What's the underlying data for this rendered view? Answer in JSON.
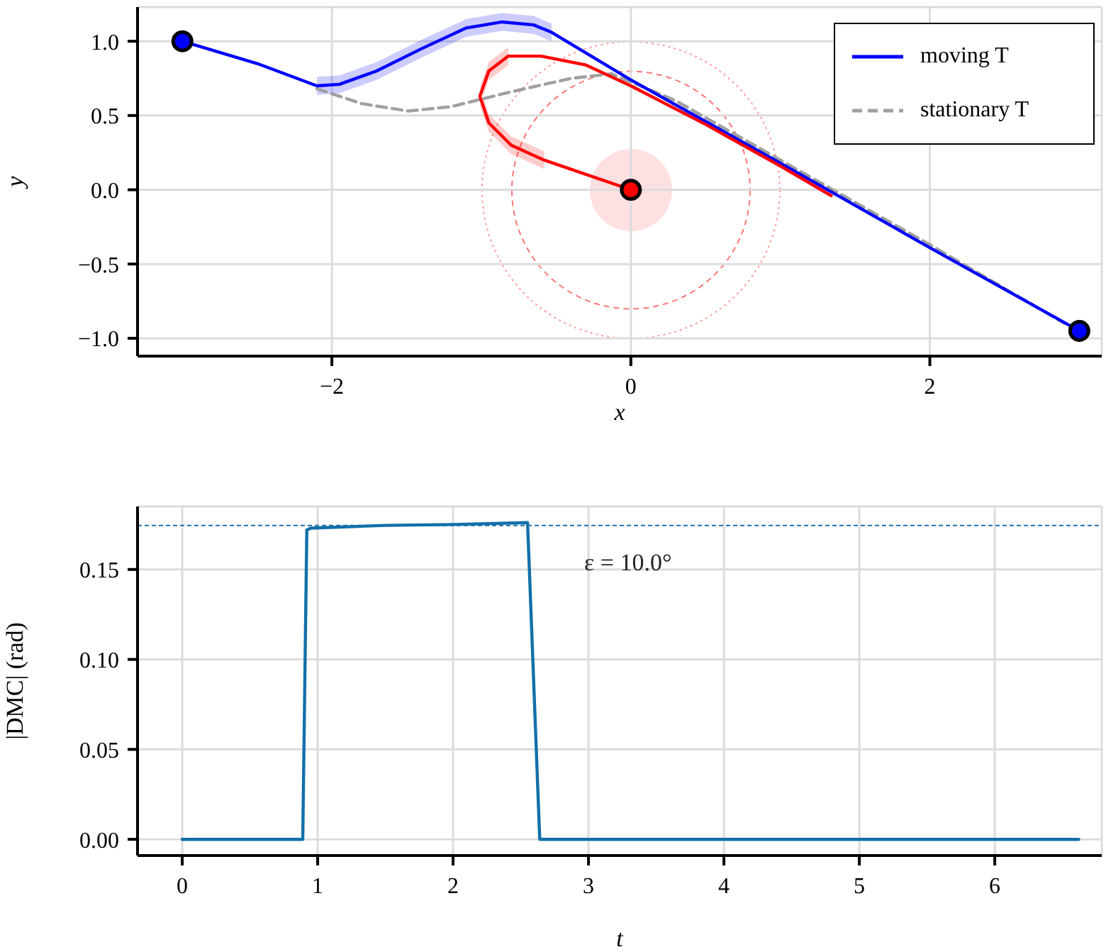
{
  "chart_data": [
    {
      "type": "line",
      "xlabel": "x",
      "ylabel": "y",
      "xlim": [
        -3.3,
        3.15
      ],
      "ylim": [
        -1.12,
        1.23
      ],
      "xticks": [
        {
          "value": -2,
          "label": "−2"
        },
        0,
        2
      ],
      "yticks": [
        {
          "value": -1,
          "label": "−1.0"
        },
        {
          "value": -0.5,
          "label": "−0.5"
        },
        {
          "value": 0,
          "label": "0.0"
        },
        {
          "value": 0.5,
          "label": "0.5"
        },
        {
          "value": 1,
          "label": "1.0"
        }
      ],
      "grid": true,
      "legend": "top right",
      "marker": "none",
      "series": [
        {
          "name": "stationary T",
          "color": "#a0a0a0",
          "line_style": "dashed",
          "x": [
            -2.1,
            -1.8,
            -1.49,
            -1.2,
            -0.8,
            -0.4,
            -0.13,
            0.3,
            1,
            2,
            2.9
          ],
          "values": [
            0.68,
            0.58,
            0.53,
            0.56,
            0.66,
            0.75,
            0.78,
            0.6,
            0.2,
            -0.37,
            -0.9
          ]
        },
        {
          "name": "moving T",
          "color": "#0000ff",
          "x": [
            -3,
            -2.5,
            -2.1,
            -1.95,
            -1.7,
            -1.4,
            -1.1,
            -0.86,
            -0.65,
            -0.53,
            0,
            1,
            2,
            3
          ],
          "values": [
            1,
            0.85,
            0.7,
            0.71,
            0.8,
            0.95,
            1.09,
            1.13,
            1.11,
            1.06,
            0.74,
            0.18,
            -0.39,
            -0.95
          ],
          "lower": [
            null,
            null,
            0.64,
            0.65,
            0.74,
            0.89,
            1.03,
            1.07,
            1.05,
            1.0,
            null,
            null,
            null,
            null
          ],
          "upper": [
            null,
            null,
            0.76,
            0.77,
            0.86,
            1.01,
            1.15,
            1.19,
            1.17,
            1.12,
            null,
            null,
            null,
            null
          ]
        },
        {
          "color": "#ff0000",
          "x": [
            0,
            -0.58,
            -0.8,
            -0.95,
            -1.01,
            -0.95,
            -0.82,
            -0.6,
            -0.3,
            0,
            0.5,
            1,
            1.34
          ],
          "values": [
            0,
            0.2,
            0.3,
            0.45,
            0.63,
            0.8,
            0.9,
            0.9,
            0.84,
            0.7,
            0.44,
            0.16,
            -0.04
          ],
          "lower": [
            null,
            0.14,
            0.24,
            0.39,
            0.57,
            0.74,
            0.84,
            null,
            null,
            null,
            null,
            null,
            null
          ],
          "upper": [
            null,
            0.26,
            0.36,
            0.51,
            0.69,
            0.86,
            0.96,
            null,
            null,
            null,
            null,
            null,
            null
          ]
        },
        {
          "type": "scatter",
          "marker": "circle",
          "color": "#0000ff",
          "x": [
            -3,
            3
          ],
          "values": [
            1,
            -0.95
          ]
        },
        {
          "type": "scatter",
          "marker": "circle",
          "color": "#ff0000",
          "x": [
            0
          ],
          "values": [
            0
          ]
        }
      ]
    },
    {
      "type": "line",
      "xlabel": "t",
      "ylabel": "|DMC| (rad)",
      "xlim": [
        -0.33,
        6.79
      ],
      "ylim": [
        -0.009,
        0.185
      ],
      "xticks": [
        0,
        1,
        2,
        3,
        4,
        5,
        6
      ],
      "yticks": [
        {
          "value": 0,
          "label": "0.00"
        },
        {
          "value": 0.05,
          "label": "0.05"
        },
        {
          "value": 0.1,
          "label": "0.10"
        },
        {
          "value": 0.15,
          "label": "0.15"
        }
      ],
      "grid": true,
      "marker": "none",
      "ref_lines": [
        {
          "axis": "y",
          "value": 0.1745,
          "color": "#1f6fa8",
          "line_style": "dashed"
        }
      ],
      "annotations": [
        "ε = 10.0°"
      ],
      "series": [
        {
          "color": "#1170aa",
          "x": [
            0,
            0.89,
            0.92,
            0.95,
            1.5,
            2,
            2.55,
            2.64,
            3,
            4,
            5,
            6,
            6.62
          ],
          "values": [
            0,
            0,
            0.172,
            0.173,
            0.1745,
            0.175,
            0.176,
            0,
            0,
            0,
            0,
            0,
            0
          ]
        }
      ]
    }
  ]
}
